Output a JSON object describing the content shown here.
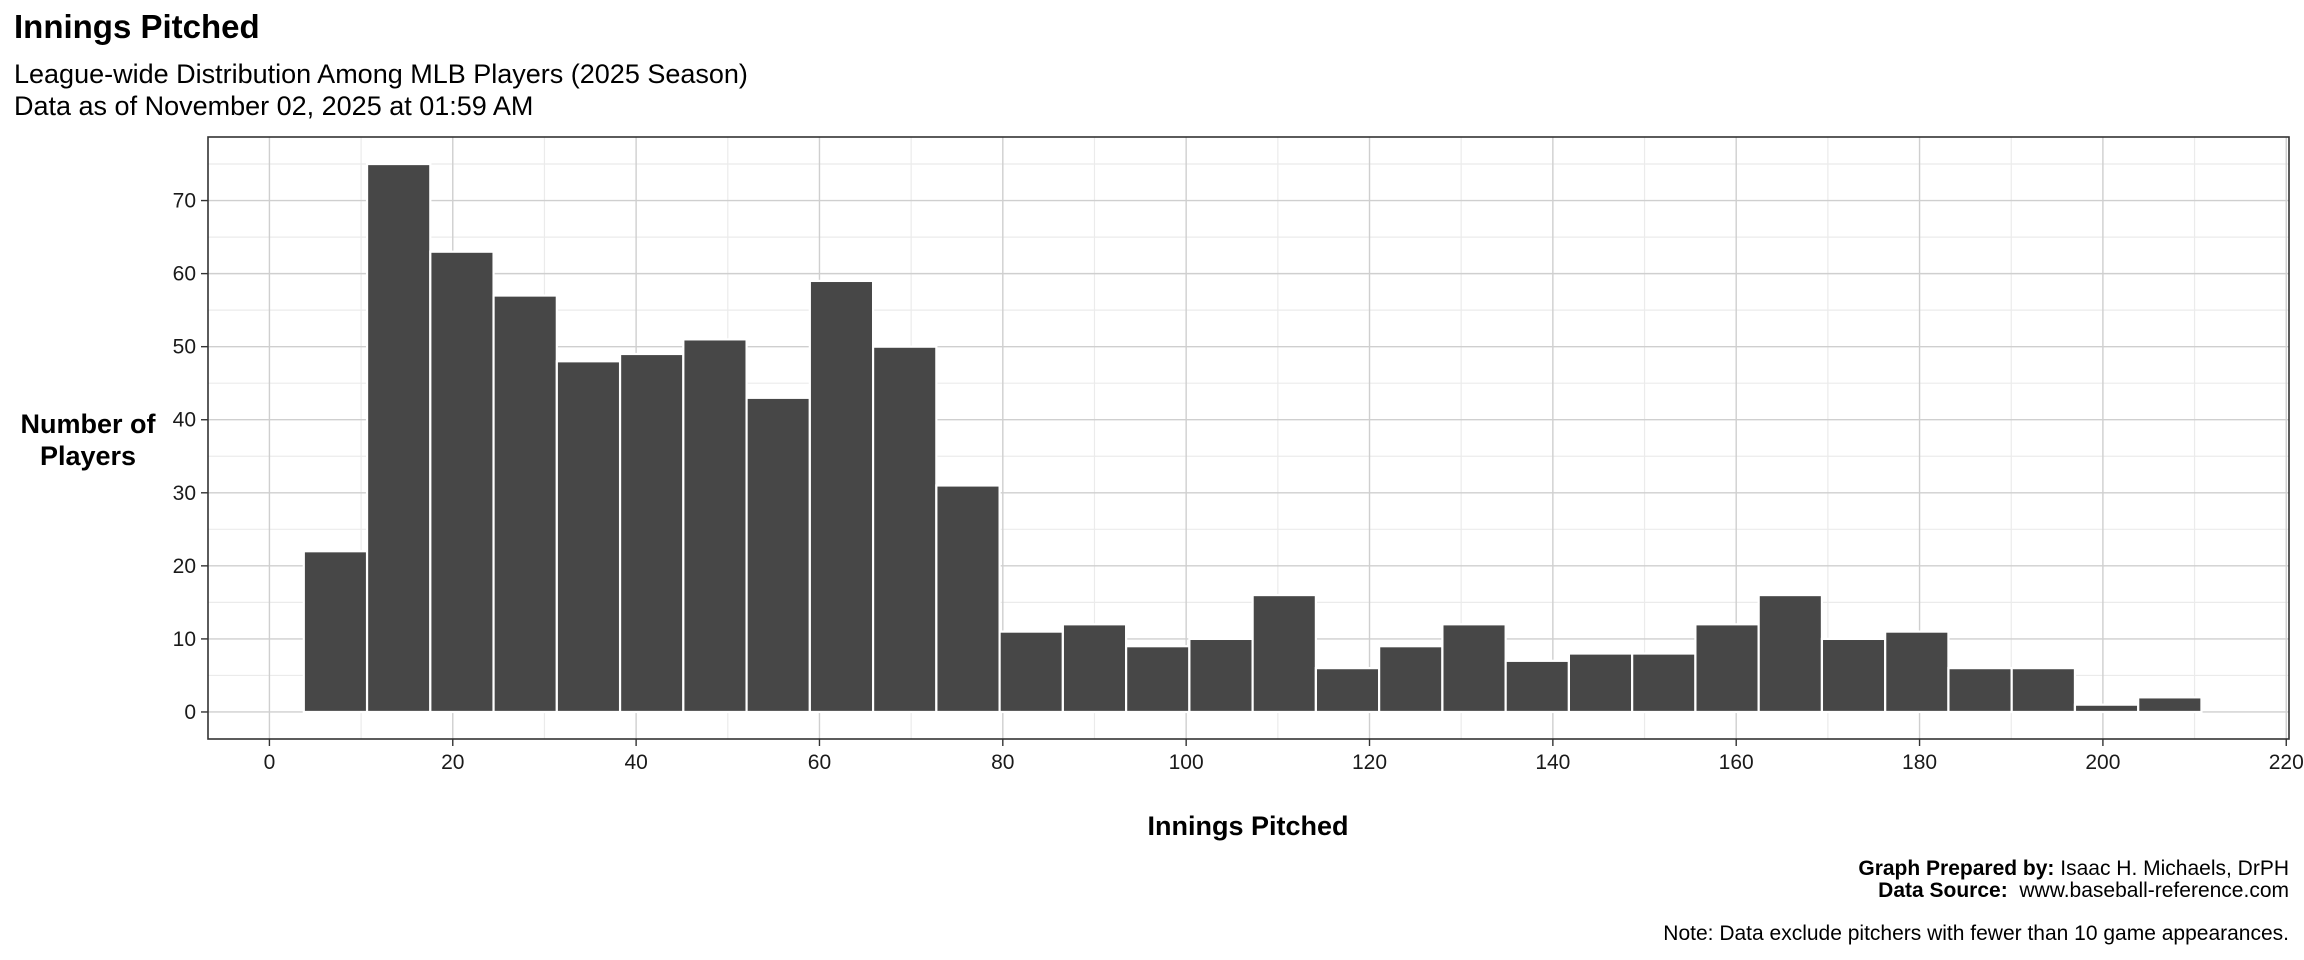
{
  "chart_data": {
    "type": "bar",
    "title": "Innings Pitched",
    "subtitle_line1": "League-wide Distribution Among MLB Players (2025 Season)",
    "subtitle_line2": "Data as of November 02, 2025 at 01:59 AM",
    "xlabel": "Innings Pitched",
    "ylabel_line1": "Number of",
    "ylabel_line2": "Players",
    "xlim": [
      -6.7,
      220.3
    ],
    "ylim": [
      -3.7,
      78.7
    ],
    "x_ticks": [
      0,
      20,
      40,
      60,
      80,
      100,
      120,
      140,
      160,
      180,
      200,
      220
    ],
    "y_ticks": [
      0,
      10,
      20,
      30,
      40,
      50,
      60,
      70
    ],
    "bin_width": 6.9,
    "bin_centers": [
      7.2,
      14.1,
      21.0,
      27.9,
      34.8,
      41.7,
      48.6,
      55.5,
      62.4,
      69.3,
      76.2,
      83.1,
      90.0,
      96.9,
      103.8,
      110.7,
      117.6,
      124.5,
      131.4,
      138.3,
      145.2,
      152.1,
      159.0,
      165.9,
      172.8,
      179.7,
      186.6,
      193.5,
      200.4,
      207.3
    ],
    "values": [
      22,
      75,
      63,
      57,
      48,
      49,
      51,
      43,
      59,
      50,
      31,
      11,
      12,
      9,
      10,
      16,
      6,
      9,
      12,
      7,
      8,
      8,
      12,
      16,
      10,
      11,
      6,
      6,
      1,
      2
    ],
    "bar_color": "#474747",
    "grid": true,
    "legend": "none"
  },
  "caption": {
    "prepared_label": "Graph Prepared by:",
    "prepared_value": " Isaac H. Michaels, DrPH",
    "source_label": "Data Source:",
    "source_value": "  www.baseball-reference.com",
    "note": "Note: Data exclude pitchers with fewer than 10 game appearances."
  }
}
